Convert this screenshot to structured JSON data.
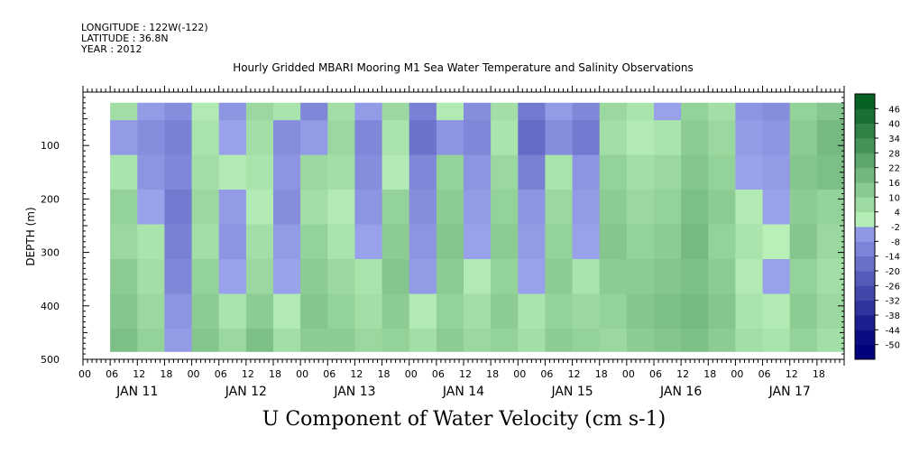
{
  "header": {
    "longitude": "LONGITUDE : 122W(-122)",
    "latitude": "LATITUDE : 36.8N",
    "year": "YEAR : 2012"
  },
  "title": "Hourly Gridded MBARI Mooring M1 Sea Water Temperature and Salinity Observations",
  "colors": {
    "background": "#ffffff",
    "missing": "#ffffff",
    "palette_low": "#00007a",
    "palette_mid_neg": "#a0a8f0",
    "palette_mid_pos": "#b8f0b8",
    "palette_high": "#005a1e"
  },
  "chart_data": {
    "type": "heatmap",
    "title": "Hourly Gridded MBARI Mooring M1 Sea Water Temperature and Salinity Observations",
    "xlabel": "U Component of Water Velocity (cm s-1)",
    "ylabel": "DEPTH (m)",
    "xlim": [
      "2012-01-11T00:00",
      "2012-01-17T23:00"
    ],
    "ylim": [
      500,
      0
    ],
    "y_ticks": [
      100,
      200,
      300,
      400,
      500
    ],
    "x_hour_ticks": [
      "00",
      "06",
      "12",
      "18",
      "00",
      "06",
      "12",
      "18",
      "00",
      "06",
      "12",
      "18",
      "00",
      "06",
      "12",
      "18",
      "00",
      "06",
      "12",
      "18",
      "00",
      "06",
      "12",
      "18",
      "00",
      "06",
      "12",
      "18"
    ],
    "x_day_labels": [
      "JAN 11",
      "JAN 12",
      "JAN 13",
      "JAN 14",
      "JAN 15",
      "JAN 16",
      "JAN 17"
    ],
    "colorbar": {
      "levels": [
        -50,
        -44,
        -38,
        -32,
        -26,
        -20,
        -14,
        -8,
        -2,
        4,
        10,
        16,
        22,
        28,
        34,
        40,
        46
      ],
      "range": [
        -50,
        50
      ]
    },
    "data_extent": {
      "time_start": "2012-01-11T06:00",
      "time_end": "2012-01-17T23:00",
      "depth_min": 20,
      "depth_max": 485
    },
    "u_velocity_cm_s": {
      "depths": [
        20,
        85,
        150,
        215,
        280,
        345,
        410,
        475
      ],
      "times": [
        "2012-01-11T06:00",
        "2012-01-11T12:00",
        "2012-01-11T18:00",
        "2012-01-12T00:00",
        "2012-01-12T06:00",
        "2012-01-12T12:00",
        "2012-01-12T18:00",
        "2012-01-13T00:00",
        "2012-01-13T06:00",
        "2012-01-13T12:00",
        "2012-01-13T18:00",
        "2012-01-14T00:00",
        "2012-01-14T06:00",
        "2012-01-14T12:00",
        "2012-01-14T18:00",
        "2012-01-15T00:00",
        "2012-01-15T06:00",
        "2012-01-15T12:00",
        "2012-01-15T18:00",
        "2012-01-16T00:00",
        "2012-01-16T06:00",
        "2012-01-16T12:00",
        "2012-01-16T18:00",
        "2012-01-17T00:00",
        "2012-01-17T06:00",
        "2012-01-17T12:00",
        "2012-01-17T18:00"
      ],
      "values": [
        [
          6,
          -4,
          -8,
          2,
          -6,
          8,
          4,
          -10,
          6,
          -4,
          8,
          -12,
          2,
          -8,
          6,
          -14,
          -4,
          -10,
          8,
          4,
          -2,
          10,
          6,
          -6,
          -8,
          10,
          14
        ],
        [
          -4,
          -8,
          -12,
          4,
          -2,
          6,
          -8,
          -4,
          8,
          -10,
          4,
          -16,
          -6,
          -10,
          4,
          -18,
          -8,
          -14,
          6,
          2,
          4,
          12,
          8,
          -4,
          -6,
          12,
          18
        ],
        [
          4,
          -6,
          -10,
          6,
          2,
          4,
          -6,
          8,
          6,
          -8,
          2,
          -10,
          10,
          -6,
          8,
          -12,
          4,
          -6,
          10,
          6,
          8,
          14,
          10,
          -2,
          -4,
          14,
          16
        ],
        [
          10,
          -2,
          -14,
          8,
          -4,
          2,
          -8,
          6,
          2,
          -6,
          10,
          -8,
          12,
          -4,
          10,
          -6,
          8,
          -4,
          12,
          8,
          10,
          16,
          12,
          2,
          -2,
          12,
          10
        ],
        [
          8,
          4,
          -12,
          6,
          -6,
          6,
          -4,
          10,
          4,
          -2,
          12,
          -6,
          14,
          -2,
          12,
          -4,
          10,
          -2,
          14,
          10,
          12,
          18,
          10,
          4,
          0,
          14,
          8
        ],
        [
          12,
          6,
          -10,
          10,
          -2,
          8,
          -2,
          12,
          8,
          4,
          14,
          -4,
          12,
          2,
          10,
          -2,
          12,
          4,
          12,
          12,
          14,
          16,
          12,
          2,
          -2,
          10,
          6
        ],
        [
          14,
          8,
          -6,
          12,
          4,
          12,
          2,
          14,
          10,
          6,
          12,
          2,
          10,
          6,
          12,
          4,
          10,
          8,
          10,
          14,
          16,
          18,
          14,
          4,
          2,
          12,
          8
        ],
        [
          16,
          10,
          -4,
          14,
          8,
          16,
          6,
          12,
          12,
          8,
          10,
          6,
          12,
          8,
          10,
          6,
          12,
          10,
          8,
          12,
          14,
          16,
          12,
          6,
          4,
          10,
          6
        ]
      ]
    }
  }
}
